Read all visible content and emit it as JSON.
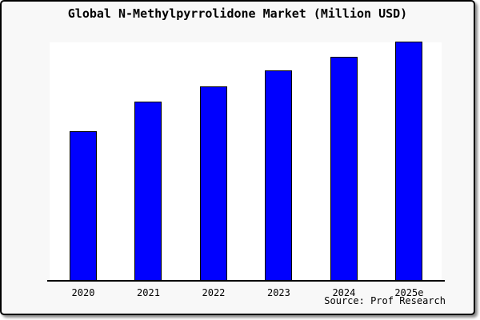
{
  "figure": {
    "title": "Global N-Methylpyrrolidone Market (Million USD)",
    "source": "Source: Prof Research",
    "colors": {
      "bar_fill": "#0000ff",
      "bar_stroke": "#000000",
      "plot_background": "#ffffff",
      "figure_background": "#f8f8f8",
      "frame_border": "#000000",
      "text": "#000000"
    }
  },
  "chart_data": {
    "type": "bar",
    "title": "Global N-Methylpyrrolidone Market (Million USD)",
    "categories": [
      "2020",
      "2021",
      "2022",
      "2023",
      "2024",
      "2025e"
    ],
    "values": [
      187,
      224,
      243,
      263,
      280,
      299
    ],
    "xlabel": "",
    "ylabel": "",
    "ylim": [
      0,
      298
    ],
    "grid": false,
    "legend": false,
    "y_axis_labels_visible": false,
    "annotations": [
      "Source: Prof Research"
    ]
  }
}
